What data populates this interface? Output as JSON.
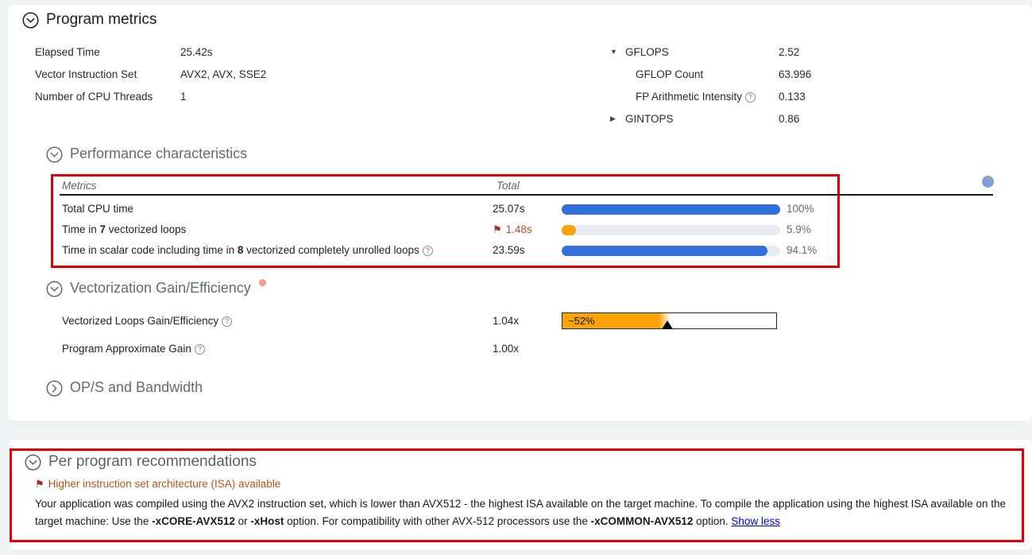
{
  "icons": {
    "help": "?",
    "flag": "⚑",
    "expanded": "▼",
    "collapsed": "▶"
  },
  "colors": {
    "bar_blue": "#316fdb",
    "bar_orange": "#f9a30b",
    "bar_track": "#e8ebf2",
    "annotation_red": "#e00000",
    "flag_red": "#ab2a1d",
    "flagged_text": "#c44a26",
    "recommendation_heading": "#b5541c",
    "link_blue": "#0000dd"
  },
  "program_metrics": {
    "title": "Program metrics",
    "left_rows": [
      {
        "label": "Elapsed Time",
        "value": "25.42s"
      },
      {
        "label": "Vector Instruction Set",
        "value": "AVX2, AVX, SSE2"
      },
      {
        "label": "Number of CPU Threads",
        "value": "1"
      }
    ],
    "right_rows": [
      {
        "label": "GFLOPS",
        "value": "2.52",
        "expander": "expanded",
        "indent": 0,
        "help": false
      },
      {
        "label": "GFLOP Count",
        "value": "63.996",
        "expander": null,
        "indent": 1,
        "help": false
      },
      {
        "label": "FP Arithmetic Intensity",
        "value": "0.133",
        "expander": null,
        "indent": 1,
        "help": true
      },
      {
        "label": "GINTOPS",
        "value": "0.86",
        "expander": "collapsed",
        "indent": 0,
        "help": false
      }
    ]
  },
  "performance_characteristics": {
    "title": "Performance characteristics",
    "table": {
      "col_metrics": "Metrics",
      "col_total": "Total",
      "rows": [
        {
          "segments": [
            {
              "t": "Total CPU time"
            }
          ],
          "help": false,
          "flag": false,
          "total": "25.07s",
          "bar_percent": 100,
          "bar_color": "blue",
          "percent_label": "100%"
        },
        {
          "segments": [
            {
              "t": "Time in "
            },
            {
              "t": "7",
              "b": true
            },
            {
              "t": " vectorized loops"
            }
          ],
          "help": false,
          "flag": true,
          "total": "1.48s",
          "bar_percent": 5.9,
          "bar_color": "orange",
          "percent_label": "5.9%"
        },
        {
          "segments": [
            {
              "t": "Time in scalar code including time in "
            },
            {
              "t": "8",
              "b": true
            },
            {
              "t": " vectorized completely unrolled loops"
            }
          ],
          "help": true,
          "flag": false,
          "total": "23.59s",
          "bar_percent": 94.1,
          "bar_color": "blue",
          "percent_label": "94.1%"
        }
      ]
    }
  },
  "vectorization_gain": {
    "title": "Vectorization Gain/Efficiency",
    "rows": [
      {
        "label": "Vectorized Loops Gain/Efficiency",
        "help": true,
        "value": "1.04x",
        "gauge": {
          "label": "~52%",
          "marker_percent": 49
        }
      },
      {
        "label": "Program Approximate Gain",
        "help": true,
        "value": "1.00x",
        "gauge": null
      }
    ]
  },
  "ops_bandwidth": {
    "title": "OP/S and Bandwidth"
  },
  "recommendations": {
    "title": "Per program recommendations",
    "items": [
      {
        "heading": "Higher instruction set architecture (ISA) available",
        "body_segments": [
          {
            "t": "Your application was compiled using the AVX2 instruction set, which is lower than AVX512 - the highest ISA available on the target machine. To compile the application using the highest ISA available on the target machine: Use the "
          },
          {
            "t": "-xCORE-AVX512",
            "b": true
          },
          {
            "t": " or "
          },
          {
            "t": "-xHost",
            "b": true
          },
          {
            "t": " option. For compatibility with other AVX-512 processors use the "
          },
          {
            "t": "-xCOMMON-AVX512",
            "b": true
          },
          {
            "t": " option. "
          },
          {
            "t": "Show less",
            "link": true
          }
        ]
      }
    ]
  }
}
